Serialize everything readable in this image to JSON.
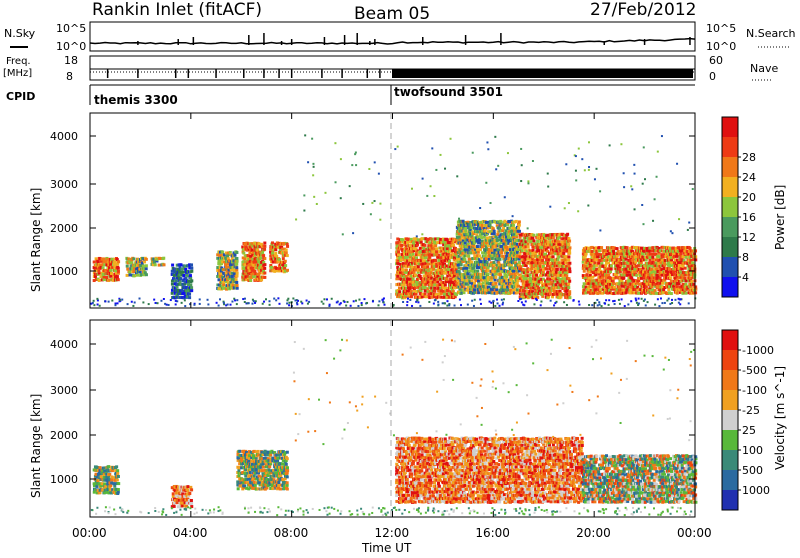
{
  "header": {
    "site": "Rankin Inlet (fitACF)",
    "beam": "Beam 05",
    "date": "27/Feb/2012"
  },
  "top_panels": {
    "nsky_label": "N.Sky",
    "nsky_ticks": [
      "10^5",
      "10^0"
    ],
    "nsearch_label": "N.Search",
    "nsearch_ticks": [
      "10^5",
      "10^0"
    ],
    "freq_label_1": "Freq.",
    "freq_label_2": "[MHz]",
    "freq_ticks": [
      "18",
      "8"
    ],
    "nave_label": "Nave",
    "nave_ticks": [
      "60",
      "0"
    ],
    "cpid_label": "CPID",
    "cpid_modes": [
      {
        "name": "themis 3300",
        "start_hour": 0
      },
      {
        "name": "twofsound 3501",
        "start_hour": 12
      }
    ]
  },
  "chart_data": [
    {
      "type": "heatmap",
      "panel": "power",
      "ylabel": "Slant Range [km]",
      "ylim": [
        180,
        4500
      ],
      "yticks": [
        "1000",
        "2000",
        "3000",
        "4000"
      ],
      "xlim_hours": [
        0,
        24
      ],
      "colorbar": {
        "label": "Power [dB]",
        "ticks": [
          "4",
          "8",
          "12",
          "16",
          "20",
          "24",
          "28"
        ],
        "colors": [
          "#1010ee",
          "#2050b0",
          "#2e7a4a",
          "#4a9a5e",
          "#8cc63c",
          "#f2b020",
          "#f07818",
          "#ee3a14",
          "#e01010"
        ]
      },
      "regions": [
        {
          "t0": 0.1,
          "t1": 1.1,
          "r0": 800,
          "r1": 1350,
          "level": "high"
        },
        {
          "t0": 1.4,
          "t1": 2.2,
          "r0": 900,
          "r1": 1350,
          "level": "mid"
        },
        {
          "t0": 2.4,
          "t1": 2.9,
          "r0": 1150,
          "r1": 1350,
          "level": "mid"
        },
        {
          "t0": 3.2,
          "t1": 4.0,
          "r0": 400,
          "r1": 1200,
          "level": "low"
        },
        {
          "t0": 5.0,
          "t1": 5.8,
          "r0": 600,
          "r1": 1500,
          "level": "mid"
        },
        {
          "t0": 6.0,
          "t1": 6.9,
          "r0": 800,
          "r1": 1700,
          "level": "high"
        },
        {
          "t0": 7.1,
          "t1": 7.8,
          "r0": 1000,
          "r1": 1700,
          "level": "high"
        },
        {
          "t0": 12.1,
          "t1": 14.5,
          "r0": 400,
          "r1": 1800,
          "level": "high"
        },
        {
          "t0": 14.5,
          "t1": 17.0,
          "r0": 500,
          "r1": 2200,
          "level": "mid"
        },
        {
          "t0": 17.0,
          "t1": 19.0,
          "r0": 400,
          "r1": 1900,
          "level": "high"
        },
        {
          "t0": 19.5,
          "t1": 24.0,
          "r0": 500,
          "r1": 1600,
          "level": "high"
        }
      ]
    },
    {
      "type": "heatmap",
      "panel": "velocity",
      "ylabel": "Slant Range [km]",
      "ylim": [
        180,
        4500
      ],
      "yticks": [
        "1000",
        "2000",
        "3000",
        "4000"
      ],
      "xticks": [
        "00:00",
        "04:00",
        "08:00",
        "12:00",
        "16:00",
        "20:00",
        "00:00"
      ],
      "xlabel": "Time UT",
      "xlim_hours": [
        0,
        24
      ],
      "colorbar": {
        "label": "Velocity [m s^-1]",
        "ticks": [
          "1000",
          "500",
          "100",
          "25",
          "-25",
          "-100",
          "-500",
          "-1000"
        ],
        "colors": [
          "#2030b0",
          "#2a6aa0",
          "#3a8a78",
          "#58b83a",
          "#cfcfcf",
          "#f0a020",
          "#f07818",
          "#ee4410",
          "#e01010"
        ]
      },
      "regions": [
        {
          "t0": 0.1,
          "t1": 1.1,
          "r0": 700,
          "r1": 1350,
          "level": "pos"
        },
        {
          "t0": 3.2,
          "t1": 4.0,
          "r0": 400,
          "r1": 900,
          "level": "neg"
        },
        {
          "t0": 5.8,
          "t1": 7.8,
          "r0": 800,
          "r1": 1700,
          "level": "pos"
        },
        {
          "t0": 12.1,
          "t1": 19.5,
          "r0": 500,
          "r1": 2000,
          "level": "neg"
        },
        {
          "t0": 19.5,
          "t1": 24.0,
          "r0": 500,
          "r1": 1600,
          "level": "mix"
        }
      ]
    }
  ]
}
